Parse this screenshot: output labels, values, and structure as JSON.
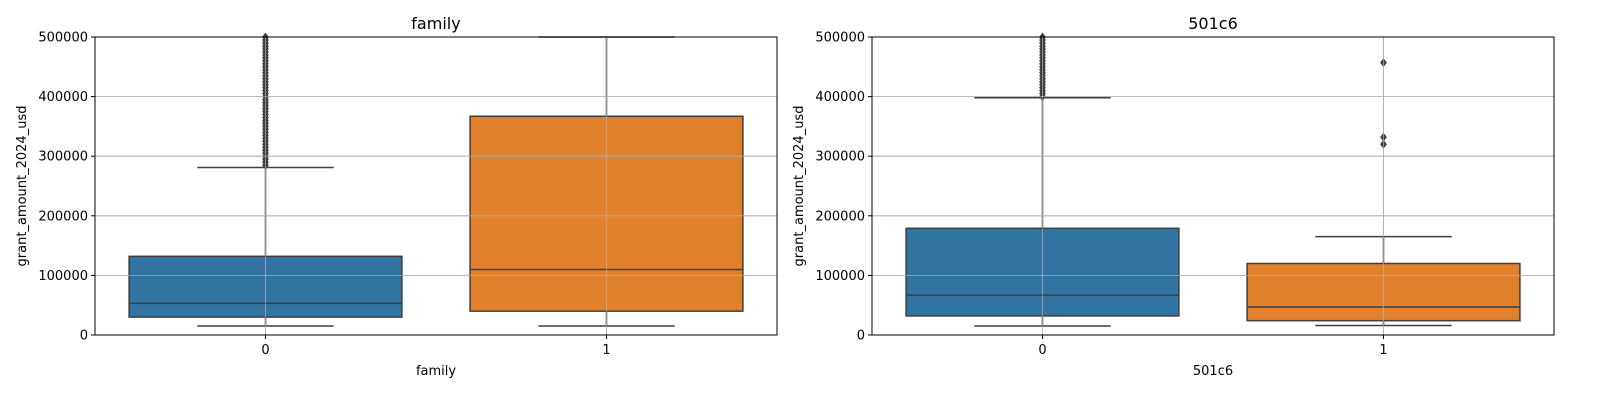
{
  "chart_data": [
    {
      "type": "box",
      "title": "family",
      "xlabel": "family",
      "ylabel": "grant_amount_2024_usd",
      "ylim": [
        0,
        500000
      ],
      "yticks": [
        0,
        100000,
        200000,
        300000,
        400000,
        500000
      ],
      "grid": true,
      "categories": [
        "0",
        "1"
      ],
      "boxes": [
        {
          "category": "0",
          "color": "#3274a1",
          "whisker_low": 15000,
          "q1": 30000,
          "median": 53000,
          "q3": 132000,
          "whisker_high": 281000,
          "outliers": [
            285000,
            290000,
            295000,
            300000,
            305000,
            310000,
            315000,
            320000,
            325000,
            330000,
            335000,
            340000,
            345000,
            350000,
            355000,
            360000,
            365000,
            370000,
            375000,
            380000,
            385000,
            390000,
            395000,
            400000,
            405000,
            410000,
            415000,
            420000,
            425000,
            430000,
            435000,
            440000,
            445000,
            450000,
            455000,
            460000,
            465000,
            470000,
            475000,
            480000,
            485000,
            490000,
            495000,
            500000
          ]
        },
        {
          "category": "1",
          "color": "#e1812c",
          "whisker_low": 15000,
          "q1": 40000,
          "median": 110000,
          "q3": 367000,
          "whisker_high": 500000,
          "outliers": []
        }
      ]
    },
    {
      "type": "box",
      "title": "501c6",
      "xlabel": "501c6",
      "ylabel": "grant_amount_2024_usd",
      "ylim": [
        0,
        500000
      ],
      "yticks": [
        0,
        100000,
        200000,
        300000,
        400000,
        500000
      ],
      "grid": true,
      "categories": [
        "0",
        "1"
      ],
      "boxes": [
        {
          "category": "0",
          "color": "#3274a1",
          "whisker_low": 15000,
          "q1": 32000,
          "median": 67000,
          "q3": 179000,
          "whisker_high": 398000,
          "outliers": [
            400000,
            405000,
            410000,
            415000,
            420000,
            425000,
            430000,
            435000,
            440000,
            445000,
            450000,
            455000,
            460000,
            465000,
            470000,
            475000,
            480000,
            485000,
            490000,
            495000,
            500000
          ]
        },
        {
          "category": "1",
          "color": "#e1812c",
          "whisker_low": 16000,
          "q1": 24000,
          "median": 47000,
          "q3": 120000,
          "whisker_high": 165000,
          "outliers": [
            320000,
            332000,
            457000
          ]
        }
      ]
    }
  ]
}
